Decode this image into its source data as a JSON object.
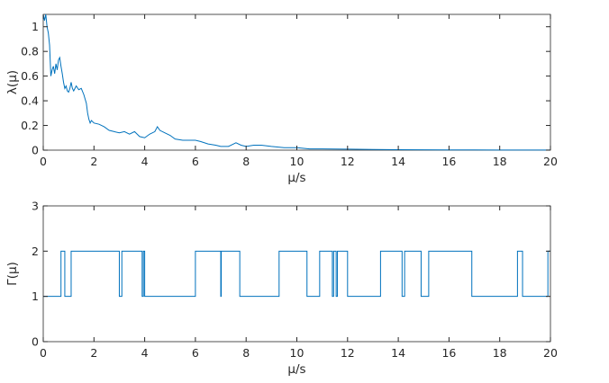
{
  "chart_data": [
    {
      "type": "line",
      "xlabel": "μ/s",
      "ylabel": "λ(μ)",
      "xlim": [
        0,
        20
      ],
      "ylim": [
        0,
        1.1
      ],
      "xticks": [
        "0",
        "2",
        "4",
        "6",
        "8",
        "10",
        "12",
        "14",
        "16",
        "18",
        "20"
      ],
      "yticks": [
        "0",
        "0.2",
        "0.4",
        "0.6",
        "0.8",
        "1"
      ],
      "grid": false,
      "series": [
        {
          "color": "#0072bd",
          "x": [
            0,
            0.05,
            0.1,
            0.15,
            0.2,
            0.25,
            0.3,
            0.35,
            0.4,
            0.45,
            0.5,
            0.55,
            0.6,
            0.65,
            0.7,
            0.75,
            0.8,
            0.85,
            0.9,
            0.95,
            1.0,
            1.05,
            1.1,
            1.15,
            1.2,
            1.3,
            1.4,
            1.5,
            1.6,
            1.7,
            1.75,
            1.8,
            1.85,
            1.9,
            2.0,
            2.2,
            2.4,
            2.6,
            2.8,
            3.0,
            3.2,
            3.4,
            3.6,
            3.8,
            4.0,
            4.2,
            4.4,
            4.5,
            4.6,
            4.8,
            5.0,
            5.2,
            5.5,
            5.8,
            6.0,
            6.2,
            6.5,
            6.8,
            7.0,
            7.3,
            7.6,
            7.8,
            8.0,
            8.3,
            8.6,
            9.0,
            9.5,
            10.0,
            10.5,
            11.0,
            12.0,
            13.0,
            14.0,
            15.0,
            16.0,
            17.0,
            18.0,
            19.0,
            20.0
          ],
          "values": [
            1.1,
            1.05,
            1.1,
            1.0,
            0.95,
            0.85,
            0.6,
            0.65,
            0.68,
            0.62,
            0.7,
            0.65,
            0.73,
            0.75,
            0.68,
            0.62,
            0.55,
            0.5,
            0.52,
            0.48,
            0.47,
            0.5,
            0.55,
            0.5,
            0.48,
            0.52,
            0.49,
            0.5,
            0.45,
            0.38,
            0.3,
            0.25,
            0.22,
            0.24,
            0.22,
            0.21,
            0.19,
            0.16,
            0.15,
            0.14,
            0.15,
            0.13,
            0.15,
            0.11,
            0.1,
            0.13,
            0.15,
            0.19,
            0.16,
            0.14,
            0.12,
            0.09,
            0.08,
            0.08,
            0.08,
            0.07,
            0.05,
            0.04,
            0.03,
            0.03,
            0.06,
            0.04,
            0.03,
            0.04,
            0.04,
            0.03,
            0.02,
            0.02,
            0.01,
            0.01,
            0.008,
            0.005,
            0.004,
            0.003,
            0.002,
            0.002,
            0.001,
            0.001,
            0.001
          ]
        }
      ]
    },
    {
      "type": "line",
      "xlabel": "μ/s",
      "ylabel": "Γ(μ)",
      "xlim": [
        0,
        20
      ],
      "ylim": [
        0,
        3
      ],
      "xticks": [
        "0",
        "2",
        "4",
        "6",
        "8",
        "10",
        "12",
        "14",
        "16",
        "18",
        "20"
      ],
      "yticks": [
        "0",
        "1",
        "2",
        "3"
      ],
      "grid": false,
      "step": true,
      "series": [
        {
          "color": "#0072bd",
          "x": [
            0,
            0.7,
            0.85,
            1.1,
            3.0,
            3.1,
            3.9,
            3.95,
            4.0,
            4.05,
            6.0,
            7.0,
            7.02,
            7.05,
            7.75,
            9.3,
            10.4,
            10.9,
            11.4,
            11.45,
            11.55,
            11.6,
            12.0,
            13.3,
            14.15,
            14.25,
            14.9,
            15.2,
            16.9,
            18.7,
            18.9,
            19.9,
            20.0
          ],
          "values": [
            1,
            2,
            1,
            2,
            1,
            2,
            1,
            2,
            1,
            1,
            2,
            1,
            2,
            2,
            1,
            2,
            1,
            2,
            1,
            2,
            1,
            2,
            1,
            2,
            1,
            2,
            1,
            2,
            1,
            2,
            1,
            2,
            2
          ]
        }
      ]
    }
  ]
}
